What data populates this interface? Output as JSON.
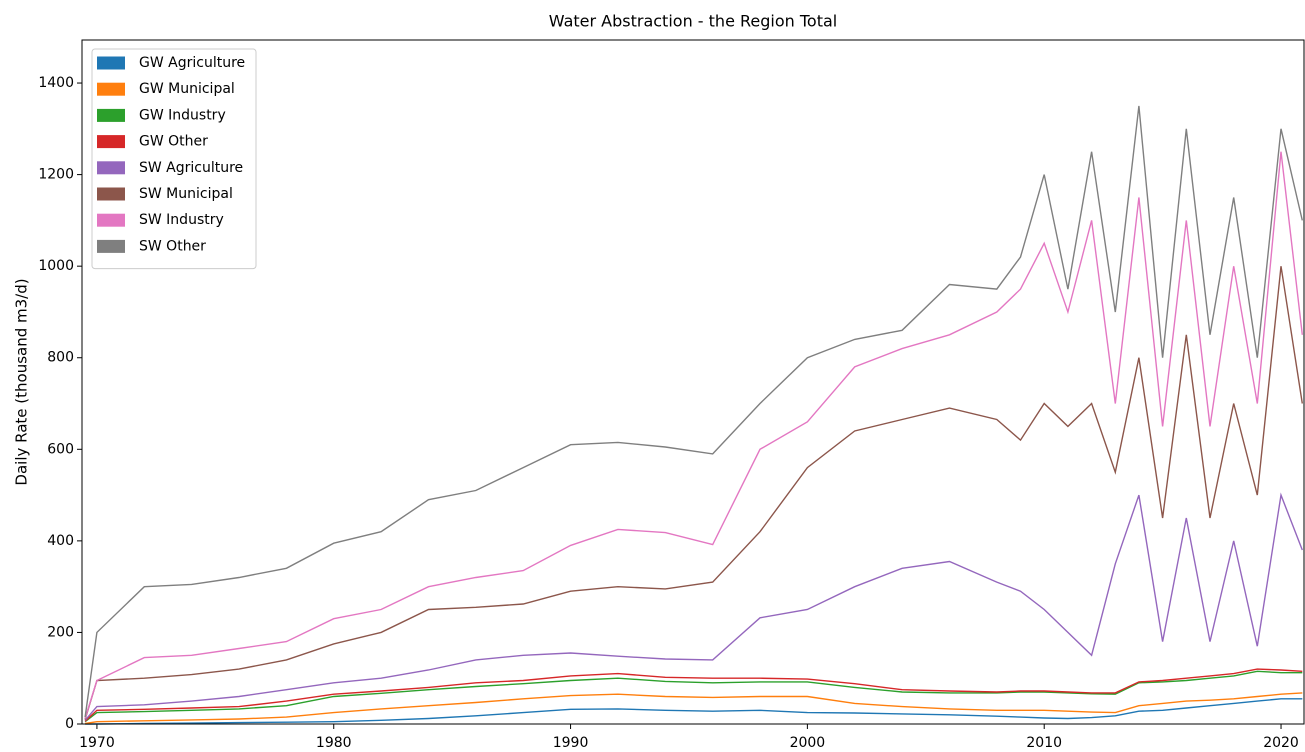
{
  "chart_data": {
    "type": "stacked_line",
    "title": "Water Abstraction - the Region Total",
    "y_label": "Daily Rate (thousand m3/d)",
    "x": [
      1969.5,
      1970,
      1972,
      1974,
      1976,
      1978,
      1980,
      1982,
      1984,
      1986,
      1988,
      1990,
      1992,
      1994,
      1996,
      1998,
      2000,
      2002,
      2004,
      2006,
      2008,
      2009,
      2010,
      2011,
      2012,
      2013,
      2014,
      2015,
      2016,
      2017,
      2018,
      2019,
      2020,
      2020.9
    ],
    "series": [
      {
        "name": "GW Agriculture",
        "color": "#1f77b4",
        "values": [
          0,
          0,
          1,
          2,
          3,
          4,
          5,
          8,
          12,
          18,
          25,
          32,
          33,
          30,
          28,
          30,
          25,
          24,
          22,
          20,
          17,
          15,
          13,
          12,
          14,
          18,
          28,
          30,
          35,
          40,
          45,
          50,
          55,
          55
        ]
      },
      {
        "name": "GW Municipal",
        "color": "#ff7f0e",
        "values": [
          1,
          5,
          6,
          7,
          8,
          11,
          20,
          25,
          28,
          29,
          30,
          30,
          32,
          30,
          30,
          30,
          35,
          21,
          16,
          13,
          13,
          15,
          17,
          16,
          12,
          7,
          12,
          15,
          15,
          12,
          10,
          10,
          10,
          13
        ]
      },
      {
        "name": "GW Industry",
        "color": "#2ca02c",
        "values": [
          4,
          20,
          20,
          21,
          22,
          25,
          35,
          34,
          35,
          35,
          33,
          33,
          35,
          33,
          32,
          32,
          32,
          35,
          32,
          35,
          38,
          40,
          40,
          40,
          40,
          40,
          50,
          47,
          45,
          48,
          50,
          55,
          47,
          44
        ]
      },
      {
        "name": "GW Other",
        "color": "#d62728",
        "values": [
          1,
          5,
          5,
          5,
          5,
          10,
          5,
          5,
          5,
          8,
          7,
          10,
          10,
          9,
          10,
          8,
          6,
          8,
          5,
          4,
          2,
          2,
          2,
          2,
          2,
          3,
          2,
          3,
          5,
          5,
          5,
          5,
          6,
          3
        ]
      },
      {
        "name": "SW Agriculture",
        "color": "#9467bd",
        "values": [
          2,
          8,
          10,
          15,
          22,
          25,
          25,
          28,
          38,
          50,
          55,
          50,
          38,
          40,
          40,
          132,
          152,
          212,
          265,
          283,
          240,
          218,
          178,
          130,
          82,
          282,
          408,
          85,
          350,
          75,
          290,
          50,
          382,
          265
        ]
      },
      {
        "name": "SW Municipal",
        "color": "#8c564b",
        "values": [
          2,
          57,
          58,
          58,
          60,
          65,
          85,
          100,
          132,
          115,
          112,
          135,
          152,
          153,
          170,
          188,
          310,
          340,
          325,
          335,
          355,
          330,
          450,
          450,
          550,
          200,
          300,
          270,
          400,
          270,
          300,
          330,
          500,
          320
        ]
      },
      {
        "name": "SW Industry",
        "color": "#e377c2",
        "values": [
          2,
          0,
          45,
          42,
          45,
          40,
          55,
          50,
          50,
          65,
          73,
          100,
          125,
          123,
          82,
          180,
          100,
          140,
          155,
          160,
          235,
          330,
          350,
          250,
          400,
          150,
          350,
          200,
          250,
          200,
          300,
          200,
          250,
          150
        ]
      },
      {
        "name": "SW Other",
        "color": "#7f7f7f",
        "values": [
          3,
          105,
          155,
          155,
          155,
          160,
          165,
          170,
          190,
          190,
          225,
          220,
          190,
          187,
          198,
          100,
          140,
          60,
          40,
          110,
          50,
          70,
          150,
          50,
          150,
          200,
          200,
          150,
          200,
          200,
          150,
          100,
          50,
          250
        ]
      }
    ],
    "xlim": [
      1969.37,
      2020.97
    ],
    "xticks": [
      1970,
      1980,
      1990,
      2000,
      2010,
      2020
    ],
    "ylim": [
      0,
      1494
    ],
    "yticks": [
      0,
      200,
      400,
      600,
      800,
      1000,
      1200,
      1400
    ],
    "legend": "upper left",
    "grid": false
  }
}
